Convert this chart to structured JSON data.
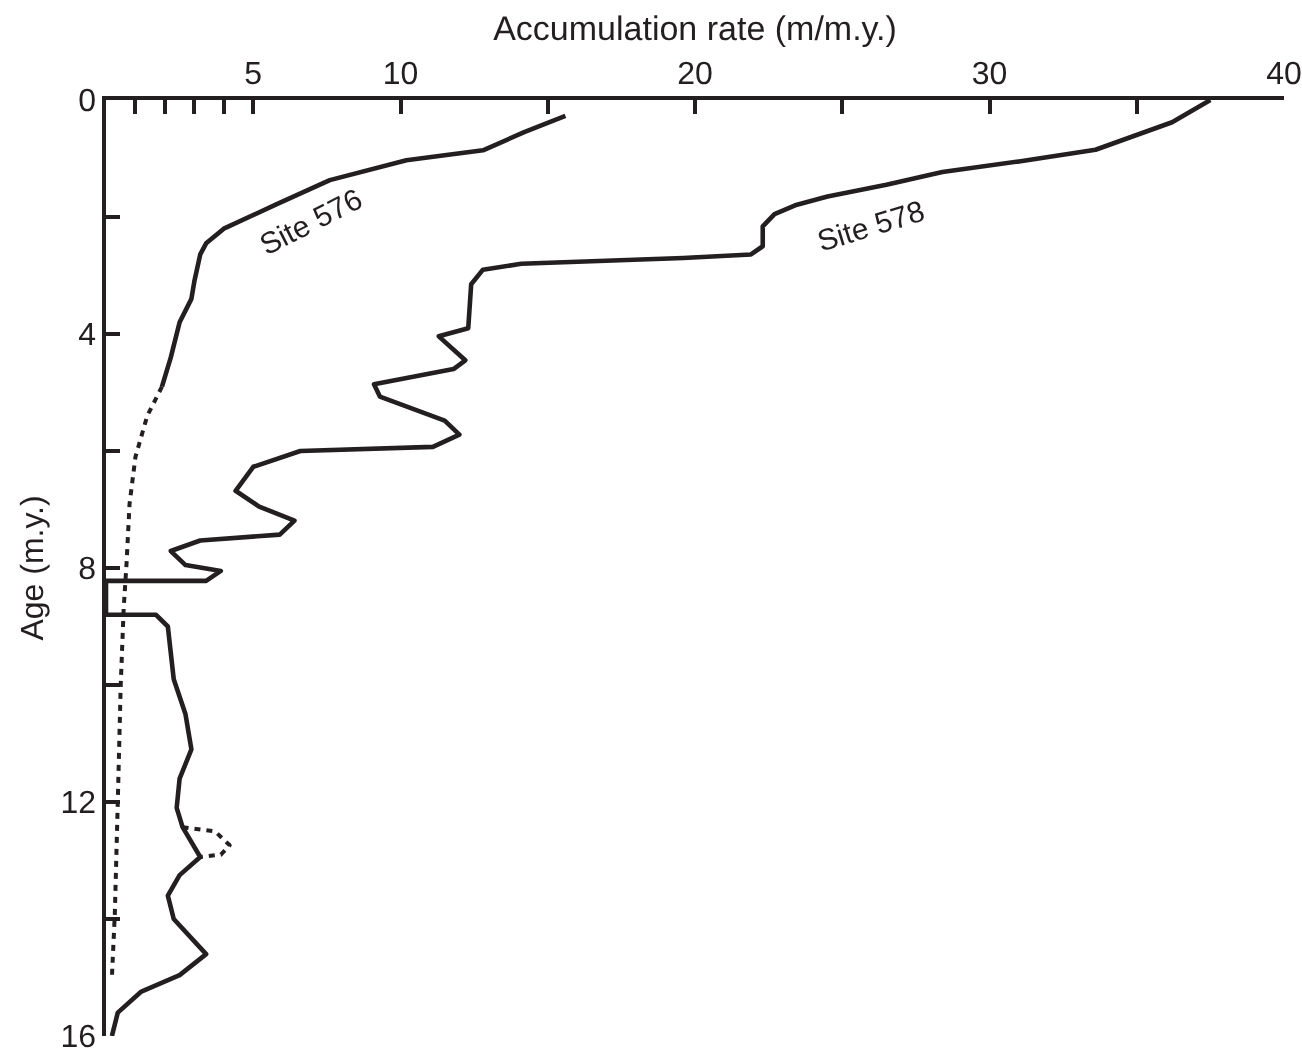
{
  "chart_data": {
    "type": "line",
    "xlabel": "Accumulation rate (m/m.y.)",
    "ylabel": "Age (m.y.)",
    "xlim": [
      0,
      40
    ],
    "ylim": [
      16,
      0
    ],
    "xticks": [
      {
        "value": 1,
        "label": null
      },
      {
        "value": 2,
        "label": null
      },
      {
        "value": 3,
        "label": null
      },
      {
        "value": 4,
        "label": null
      },
      5,
      10,
      {
        "value": 15,
        "label": null
      },
      20,
      {
        "value": 25,
        "label": null
      },
      30,
      {
        "value": 35,
        "label": null
      },
      40
    ],
    "yticks": [
      0,
      {
        "value": 2,
        "label": null
      },
      4,
      {
        "value": 6,
        "label": null
      },
      8,
      {
        "value": 10,
        "label": null
      },
      12,
      {
        "value": 14,
        "label": null
      },
      16
    ],
    "series": [
      {
        "name": "Site 576",
        "color": "#231f20",
        "line_style": "solid",
        "x": [
          15.6,
          14.2,
          12.8,
          10.2,
          7.6,
          5.8,
          4.0,
          3.4,
          3.2,
          3.0,
          2.9,
          2.5,
          2.2,
          1.9
        ],
        "values": [
          0.27,
          0.55,
          0.86,
          1.03,
          1.37,
          1.78,
          2.2,
          2.45,
          2.64,
          3.1,
          3.4,
          3.8,
          4.4,
          4.9
        ]
      },
      {
        "color": "#231f20",
        "line_style": "dotted",
        "x": [
          1.9,
          1.4,
          1.0,
          0.8,
          0.7,
          0.6,
          0.5,
          0.4,
          0.3,
          0.2
        ],
        "values": [
          4.9,
          5.4,
          6.1,
          6.9,
          7.9,
          8.7,
          10.0,
          12.0,
          13.9,
          15.0
        ]
      },
      {
        "name": "Site 578",
        "color": "#231f20",
        "line_style": "solid",
        "x": [
          37.5,
          36.2,
          33.6,
          31.0,
          28.4,
          26.5,
          24.5,
          23.4,
          22.7,
          22.3,
          22.3,
          21.9,
          19.6,
          14.1,
          12.8,
          12.4,
          12.3,
          11.3,
          12.2,
          11.8,
          9.1,
          9.3,
          11.5,
          12.0,
          11.1,
          6.6,
          5.0,
          4.4,
          5.2,
          6.4,
          5.9,
          3.2,
          2.2,
          2.7,
          3.9,
          3.4,
          0,
          0,
          1.7,
          2.1,
          2.3,
          2.7,
          2.9,
          2.5,
          2.4,
          2.6,
          3.2,
          2.5,
          2.1,
          2.3,
          3.4,
          2.5,
          1.2,
          0.4,
          0.2
        ],
        "values": [
          0,
          0.38,
          0.85,
          1.05,
          1.23,
          1.45,
          1.65,
          1.8,
          1.95,
          2.16,
          2.5,
          2.64,
          2.7,
          2.8,
          2.9,
          3.15,
          3.9,
          4.04,
          4.45,
          4.6,
          4.86,
          5.07,
          5.48,
          5.72,
          5.93,
          6.0,
          6.27,
          6.68,
          6.95,
          7.19,
          7.43,
          7.53,
          7.71,
          7.95,
          8.05,
          8.22,
          8.22,
          8.8,
          8.8,
          9.0,
          9.9,
          10.5,
          11.1,
          11.6,
          12.1,
          12.43,
          12.94,
          13.25,
          13.6,
          14.0,
          14.6,
          14.96,
          15.24,
          15.6,
          16.0
        ]
      },
      {
        "color": "#231f20",
        "line_style": "dotted",
        "x": [
          2.6,
          3.7,
          4.2,
          3.9,
          3.2
        ],
        "values": [
          12.43,
          12.5,
          12.74,
          12.9,
          12.94
        ]
      }
    ]
  }
}
